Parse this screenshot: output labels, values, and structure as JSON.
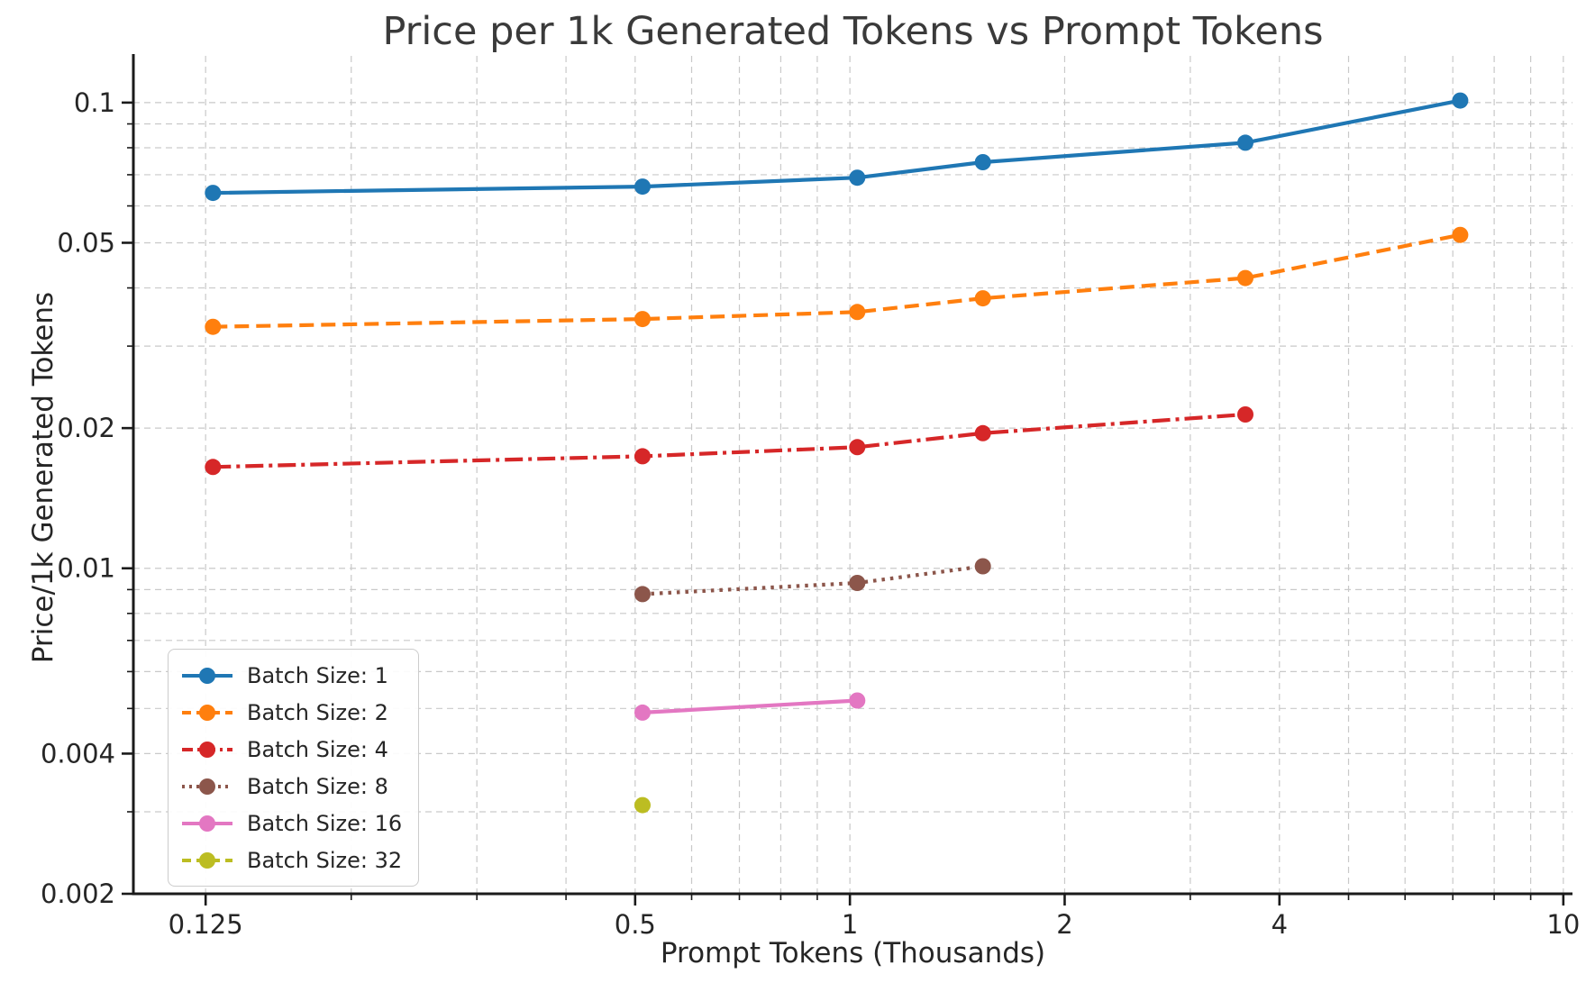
{
  "figure": {
    "title": "Price per 1k Generated Tokens vs Prompt Tokens",
    "xlabel": "Prompt Tokens (Thousands)",
    "ylabel": "Price/1k Generated Tokens"
  },
  "chart_data": {
    "type": "line",
    "title": "Price per 1k Generated Tokens vs Prompt Tokens",
    "xlabel": "Prompt Tokens (Thousands)",
    "ylabel": "Price/1k Generated Tokens",
    "x_scale": "log",
    "y_scale": "log",
    "xlim": [
      0.099,
      10.3
    ],
    "ylim": [
      0.002,
      0.126
    ],
    "grid": "both-dashed",
    "legend_position": "lower-left",
    "x_ticks": [
      0.125,
      0.5,
      1,
      2,
      4,
      10
    ],
    "x_tick_labels": [
      "0.125",
      "0.5",
      "1",
      "2",
      "4",
      "10"
    ],
    "y_ticks": [
      0.002,
      0.004,
      0.01,
      0.02,
      0.05,
      0.1
    ],
    "y_tick_labels": [
      "0.002",
      "0.004",
      "0.01",
      "0.02",
      "0.05",
      "0.1"
    ],
    "x_minor_ticks": [
      0.2,
      0.3,
      0.4,
      0.6,
      0.7,
      0.8,
      0.9,
      3,
      5,
      6,
      7,
      8,
      9
    ],
    "y_minor_ticks": [
      0.003,
      0.005,
      0.006,
      0.007,
      0.008,
      0.009,
      0.03,
      0.04,
      0.06,
      0.07,
      0.08,
      0.09
    ],
    "series": [
      {
        "name": "Batch Size: 1",
        "color": "#1f77b4",
        "line_style": "solid",
        "x": [
          0.128,
          0.512,
          1.024,
          1.536,
          3.584,
          7.168
        ],
        "y": [
          0.064,
          0.066,
          0.069,
          0.0745,
          0.082,
          0.101
        ]
      },
      {
        "name": "Batch Size: 2",
        "color": "#ff7f0e",
        "line_style": "dashed",
        "x": [
          0.128,
          0.512,
          1.024,
          1.536,
          3.584,
          7.168
        ],
        "y": [
          0.033,
          0.0343,
          0.0355,
          0.038,
          0.042,
          0.052
        ]
      },
      {
        "name": "Batch Size: 4",
        "color": "#d62728",
        "line_style": "dashdot",
        "x": [
          0.128,
          0.512,
          1.024,
          1.536,
          3.584
        ],
        "y": [
          0.0165,
          0.0174,
          0.0182,
          0.0195,
          0.0214
        ]
      },
      {
        "name": "Batch Size: 8",
        "color": "#8c564b",
        "line_style": "dotted",
        "x": [
          0.512,
          1.024,
          1.536
        ],
        "y": [
          0.0088,
          0.0093,
          0.0101
        ]
      },
      {
        "name": "Batch Size: 16",
        "color": "#e377c2",
        "line_style": "solid",
        "x": [
          0.512,
          1.024
        ],
        "y": [
          0.0049,
          0.0052
        ]
      },
      {
        "name": "Batch Size: 32",
        "color": "#bcbd22",
        "line_style": "dashed",
        "x": [
          0.512
        ],
        "y": [
          0.0031
        ]
      }
    ]
  }
}
